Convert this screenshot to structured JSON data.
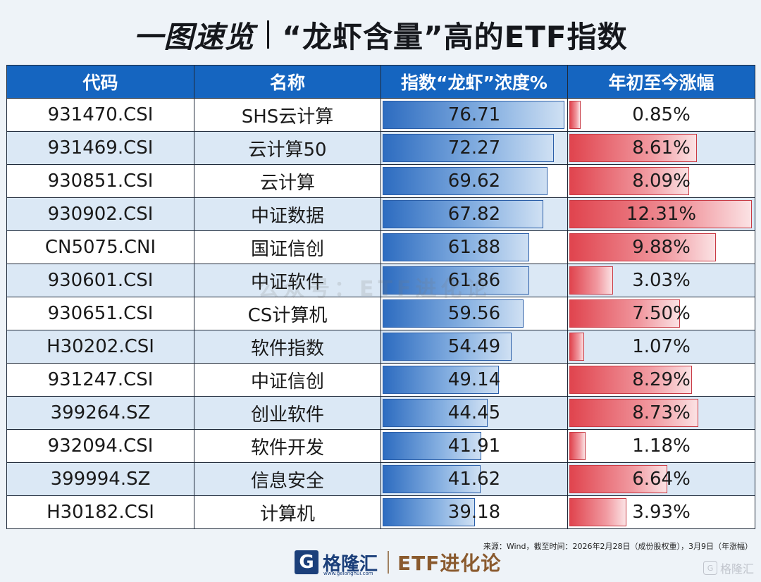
{
  "title": {
    "part1": "一图速览",
    "part2": "“龙虾含量”高的ETF指数"
  },
  "table": {
    "headers": [
      "代码",
      "名称",
      "指数“龙虾”浓度%",
      "年初至今涨幅"
    ],
    "rows": [
      {
        "code": "931470.CSI",
        "name": "SHS云计算",
        "conc": 76.71,
        "conc_label": "76.71",
        "ytd": 0.85,
        "ytd_label": "0.85%"
      },
      {
        "code": "931469.CSI",
        "name": "云计算50",
        "conc": 72.27,
        "conc_label": "72.27",
        "ytd": 8.61,
        "ytd_label": "8.61%"
      },
      {
        "code": "930851.CSI",
        "name": "云计算",
        "conc": 69.62,
        "conc_label": "69.62",
        "ytd": 8.09,
        "ytd_label": "8.09%"
      },
      {
        "code": "930902.CSI",
        "name": "中证数据",
        "conc": 67.82,
        "conc_label": "67.82",
        "ytd": 12.31,
        "ytd_label": "12.31%"
      },
      {
        "code": "CN5075.CNI",
        "name": "国证信创",
        "conc": 61.88,
        "conc_label": "61.88",
        "ytd": 9.88,
        "ytd_label": "9.88%"
      },
      {
        "code": "930601.CSI",
        "name": "中证软件",
        "conc": 61.86,
        "conc_label": "61.86",
        "ytd": 3.03,
        "ytd_label": "3.03%"
      },
      {
        "code": "930651.CSI",
        "name": "CS计算机",
        "conc": 59.56,
        "conc_label": "59.56",
        "ytd": 7.5,
        "ytd_label": "7.50%"
      },
      {
        "code": "H30202.CSI",
        "name": "软件指数",
        "conc": 54.49,
        "conc_label": "54.49",
        "ytd": 1.07,
        "ytd_label": "1.07%"
      },
      {
        "code": "931247.CSI",
        "name": "中证信创",
        "conc": 49.14,
        "conc_label": "49.14",
        "ytd": 8.29,
        "ytd_label": "8.29%"
      },
      {
        "code": "399264.SZ",
        "name": "创业软件",
        "conc": 44.45,
        "conc_label": "44.45",
        "ytd": 8.73,
        "ytd_label": "8.73%"
      },
      {
        "code": "932094.CSI",
        "name": "软件开发",
        "conc": 41.91,
        "conc_label": "41.91",
        "ytd": 1.18,
        "ytd_label": "1.18%"
      },
      {
        "code": "399994.SZ",
        "name": "信息安全",
        "conc": 41.62,
        "conc_label": "41.62",
        "ytd": 6.64,
        "ytd_label": "6.64%"
      },
      {
        "code": "H30182.CSI",
        "name": "计算机",
        "conc": 39.18,
        "conc_label": "39.18",
        "ytd": 3.93,
        "ytd_label": "3.93%"
      }
    ]
  },
  "chart_data": {
    "type": "table",
    "columns": [
      "代码",
      "名称",
      "指数“龙虾”浓度%",
      "年初至今涨幅"
    ],
    "categories": [
      "931470.CSI",
      "931469.CSI",
      "930851.CSI",
      "930902.CSI",
      "CN5075.CNI",
      "930601.CSI",
      "930651.CSI",
      "H30202.CSI",
      "931247.CSI",
      "399264.SZ",
      "932094.CSI",
      "399994.SZ",
      "H30182.CSI"
    ],
    "series": [
      {
        "name": "指数“龙虾”浓度%",
        "values": [
          76.71,
          72.27,
          69.62,
          67.82,
          61.88,
          61.86,
          59.56,
          54.49,
          49.14,
          44.45,
          41.91,
          41.62,
          39.18
        ]
      },
      {
        "name": "年初至今涨幅",
        "values": [
          0.85,
          8.61,
          8.09,
          12.31,
          9.88,
          3.03,
          7.5,
          1.07,
          8.29,
          8.73,
          1.18,
          6.64,
          3.93
        ]
      }
    ]
  },
  "footer": {
    "note": "来源：Wind，截至时间：2026年2月28日（成份股权重），3月9日（年涨幅）",
    "brand_logo": "G",
    "brand_name": "格隆汇",
    "brand_url": "www.gelonghui.com",
    "brand_etf": "ETF进化论",
    "corner_icon": "G",
    "corner_text": "格隆汇"
  },
  "watermark": "公众号：ETF进化论",
  "colors": {
    "header_bg": "#1565c0",
    "bar_blue": "#2d6cc0",
    "bar_red": "#e0444e",
    "row_alt": "#dbe8f5"
  }
}
